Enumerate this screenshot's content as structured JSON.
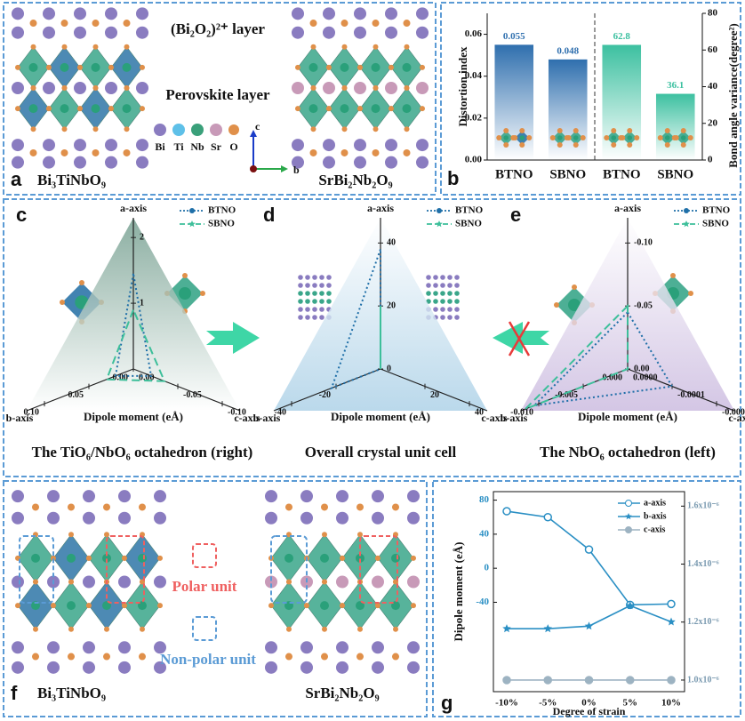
{
  "figure": {
    "a": {
      "letter": "a",
      "layer_top": "(Bi₂O₂)²⁺ layer",
      "layer_mid": "Perovskite layer",
      "atoms": [
        "Bi",
        "Ti",
        "Nb",
        "Sr",
        "O"
      ],
      "axis_c": "c",
      "axis_b": "b",
      "left": "Bi₃TiNbO₉",
      "right": "SrBi₂Nb₂O₉"
    },
    "f": {
      "letter": "f",
      "polar": "Polar unit",
      "nonpolar": "Non-polar unit",
      "left": "Bi₃TiNbO₉",
      "right": "SrBi₂Nb₂O₉"
    }
  },
  "chart_data": [
    {
      "type": "bar",
      "letter": "b",
      "categories": [
        "BTNO",
        "SBNO",
        "BTNO",
        "SBNO"
      ],
      "ylabel": "Distortion index",
      "y2label": "Bond angle variance(degree²)",
      "ylim": [
        0,
        0.07
      ],
      "yticks": [
        {
          "value": 0,
          "label": "0.00"
        },
        0.02,
        0.04,
        0.06
      ],
      "y2lim": [
        0,
        80
      ],
      "y2ticks": [
        0,
        20,
        40,
        60,
        80
      ],
      "series": [
        {
          "name": "Distortion index",
          "color": "#2f6fae",
          "values": [
            0.055,
            0.048,
            null,
            null
          ]
        },
        {
          "name": "Bond angle variance",
          "color": "#3cc0a0",
          "axis": "y2",
          "values": [
            null,
            null,
            62.8,
            36.1
          ]
        }
      ]
    },
    {
      "type": "ternary",
      "letter": "c",
      "xlabel": "Dipole moment (eÅ)",
      "caption": "The TiO₆/NbO₆ octahedron (right)",
      "axes": [
        {
          "name": "a-axis",
          "lim": [
            0,
            2.3
          ],
          "ticks": [
            1,
            2
          ]
        },
        {
          "name": "b-axis",
          "lim": [
            0,
            0.12
          ],
          "ticks": [
            {
              "value": 0,
              "label": "0.00"
            },
            0.05,
            {
              "value": 0.1,
              "label": "0.10"
            }
          ]
        },
        {
          "name": "c-axis",
          "lim": [
            0,
            -0.12
          ],
          "ticks": [
            {
              "value": 0,
              "label": "0.00"
            },
            -0.05,
            {
              "value": -0.1,
              "label": "-0.10"
            }
          ]
        }
      ],
      "series": [
        {
          "name": "BTNO",
          "color": "#1f6fa8",
          "values": [
            1.45,
            0.02,
            -0.02
          ]
        },
        {
          "name": "SBNO",
          "color": "#3dbf9a",
          "values": [
            0.9,
            0.03,
            -0.035
          ]
        }
      ]
    },
    {
      "type": "ternary",
      "letter": "d",
      "xlabel": "Dipole moment (eÅ)",
      "caption": "Overall crystal unit cell",
      "axes": [
        {
          "name": "a-axis",
          "lim": [
            0,
            48
          ],
          "ticks": [
            0,
            20,
            40
          ]
        },
        {
          "name": "b-axis",
          "lim": [
            0,
            -48
          ],
          "ticks": [
            -20,
            -40
          ]
        },
        {
          "name": "c-axis",
          "lim": [
            0,
            48
          ],
          "ticks": [
            20,
            40
          ]
        }
      ],
      "series": [
        {
          "name": "BTNO",
          "color": "#1f6fa8",
          "values": [
            38,
            -22,
            0
          ]
        },
        {
          "name": "SBNO",
          "color": "#3dbf9a",
          "values": [
            20,
            0,
            0
          ]
        }
      ]
    },
    {
      "type": "ternary",
      "letter": "e",
      "xlabel": "Dipole moment (eÅ)",
      "caption": "The NbO₆ octahedron (left)",
      "axes": [
        {
          "name": "a-axis",
          "lim": [
            0,
            -0.12
          ],
          "ticks": [
            {
              "value": 0,
              "label": "0.00"
            },
            -0.05,
            {
              "value": -0.1,
              "label": "-0.10"
            }
          ]
        },
        {
          "name": "b-axis",
          "lim": [
            0,
            -0.012
          ],
          "ticks": [
            {
              "value": 0,
              "label": "0.000"
            },
            -0.005,
            {
              "value": -0.01,
              "label": "-0.010"
            }
          ]
        },
        {
          "name": "c-axis",
          "lim": [
            0,
            -0.00024
          ],
          "ticks": [
            {
              "value": 0,
              "label": "0.0000"
            },
            -0.0001,
            -0.0002
          ]
        }
      ],
      "series": [
        {
          "name": "BTNO",
          "color": "#1f6fa8",
          "values": [
            -0.045,
            -0.0105,
            -0.0001
          ]
        },
        {
          "name": "SBNO",
          "color": "#3dbf9a",
          "values": [
            -0.05,
            -0.0115,
            0
          ]
        }
      ]
    },
    {
      "type": "line",
      "letter": "g",
      "categories": [
        "-10%",
        "-5%",
        "0%",
        "5%",
        "10%"
      ],
      "xlabel": "Degree of strain",
      "ylabel": "Dipole moment (eÅ)",
      "ylim": [
        -145,
        90
      ],
      "yticks": [
        -40,
        0,
        40,
        80
      ],
      "y2lim": [
        9.6e-07,
        1.65e-06
      ],
      "y2ticks": [
        {
          "value": 1e-06,
          "label": "1.0x10⁻⁶"
        },
        {
          "value": 1.2e-06,
          "label": "1.2x10⁻⁶"
        },
        {
          "value": 1.4e-06,
          "label": "1.4x10⁻⁶"
        },
        {
          "value": 1.6e-06,
          "label": "1.6x10⁻⁶"
        }
      ],
      "series": [
        {
          "name": "a-axis",
          "color": "#2a8fc4",
          "marker": "circle-half",
          "values": [
            67,
            60,
            22,
            -43,
            -42
          ]
        },
        {
          "name": "b-axis",
          "color": "#2a8fc4",
          "marker": "star",
          "values": [
            -71,
            -71,
            -68,
            -44,
            -63
          ]
        },
        {
          "name": "c-axis",
          "color": "#9db3c2",
          "marker": "circle",
          "axis": "y2",
          "values": [
            1e-06,
            1e-06,
            1e-06,
            1e-06,
            1e-06
          ]
        }
      ]
    }
  ]
}
